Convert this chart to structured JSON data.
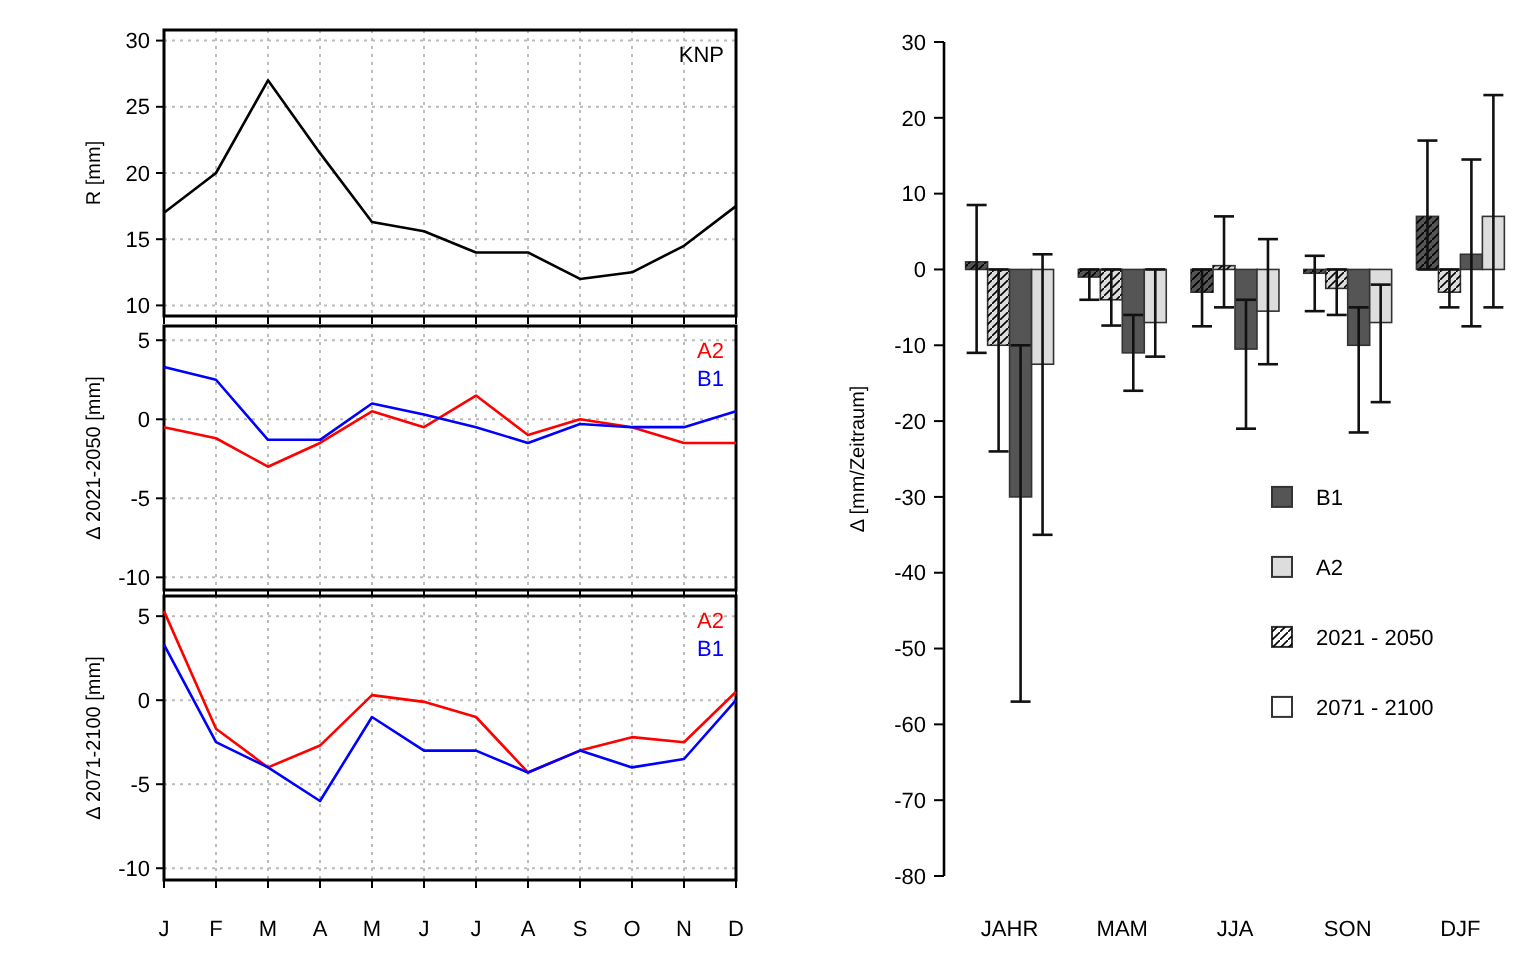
{
  "chart_data": [
    {
      "type": "line",
      "ylabel": "R [mm]",
      "ylim": [
        9.2,
        30.8
      ],
      "yticks": [
        10,
        15,
        20,
        25,
        30
      ],
      "grid": true,
      "tick_labels": "y",
      "annotations": [
        "KNP"
      ],
      "series": [
        {
          "color": "#000000",
          "values": [
            17,
            20,
            27,
            21.5,
            16.3,
            15.6,
            14,
            14,
            12,
            12.5,
            14.5,
            17.5
          ]
        }
      ]
    },
    {
      "type": "line",
      "ylabel": "Δ 2021-2050 [mm]",
      "ylim": [
        -10.8,
        5.9
      ],
      "yticks": [
        -10,
        -5,
        0,
        5
      ],
      "grid": true,
      "tick_labels": "y",
      "legend": "top right",
      "series": [
        {
          "name": "A2",
          "color": "#ff0000",
          "values": [
            -0.5,
            -1.2,
            -3,
            -1.5,
            0.5,
            -0.5,
            1.5,
            -1,
            0,
            -0.5,
            -1.5,
            -1.5
          ]
        },
        {
          "name": "B1",
          "color": "#0000ff",
          "values": [
            3.3,
            2.5,
            -1.3,
            -1.3,
            1,
            0.3,
            -0.5,
            -1.5,
            -0.3,
            -0.5,
            -0.5,
            0.5
          ]
        }
      ]
    },
    {
      "type": "line",
      "ylabel": "Δ 2071-2100 [mm]",
      "categories": [
        "J",
        "F",
        "M",
        "A",
        "M",
        "J",
        "J",
        "A",
        "S",
        "O",
        "N",
        "D"
      ],
      "ylim": [
        -10.7,
        6.2
      ],
      "yticks": [
        -10,
        -5,
        0,
        5
      ],
      "grid": true,
      "legend": "top right",
      "series": [
        {
          "name": "A2",
          "color": "#ff0000",
          "values": [
            5.3,
            -1.7,
            -4,
            -2.7,
            0.3,
            -0.1,
            -1,
            -4.3,
            -3,
            -2.2,
            -2.5,
            0.5
          ]
        },
        {
          "name": "B1",
          "color": "#0000ff",
          "values": [
            3.3,
            -2.5,
            -4,
            -6,
            -1,
            -3,
            -3,
            -4.3,
            -3,
            -4,
            -3.5,
            0
          ]
        }
      ]
    },
    {
      "type": "bar",
      "ylabel": "Δ [mm/Zeitraum]",
      "categories": [
        "JAHR",
        "MAM",
        "JJA",
        "SON",
        "DJF"
      ],
      "ylim": [
        -80,
        30
      ],
      "yticks": [
        -80,
        -70,
        -60,
        -50,
        -40,
        -30,
        -20,
        -10,
        0,
        10,
        20,
        30
      ],
      "annotations": [
        "B1",
        "A2",
        "2021 - 2050",
        "2071 - 2100"
      ],
      "series": [
        {
          "color": "#555555",
          "values": [
            1,
            -1,
            -3,
            -0.5,
            7
          ],
          "errors": [
            [
              -11,
              8.5
            ],
            [
              -4,
              0
            ],
            [
              -7.5,
              0
            ],
            [
              -5.5,
              1.8
            ],
            [
              0,
              17
            ]
          ]
        },
        {
          "color": "#dddddd",
          "values": [
            -10,
            -4,
            0.5,
            -2.5,
            -3
          ],
          "errors": [
            [
              -24,
              0
            ],
            [
              -7.4,
              0
            ],
            [
              -5,
              7
            ],
            [
              -6,
              0
            ],
            [
              -5,
              0
            ]
          ]
        },
        {
          "color": "#555555",
          "values": [
            -30,
            -11,
            -10.5,
            -10,
            2
          ],
          "errors": [
            [
              -57,
              -10
            ],
            [
              -16,
              -6
            ],
            [
              -21,
              -4
            ],
            [
              -21.5,
              -5
            ],
            [
              -7.5,
              14.5
            ]
          ]
        },
        {
          "color": "#dddddd",
          "values": [
            -12.5,
            -7,
            -5.5,
            -7,
            7
          ],
          "errors": [
            [
              -35,
              2
            ],
            [
              -11.5,
              0
            ],
            [
              -12.5,
              4
            ],
            [
              -17.5,
              -2
            ],
            [
              -5,
              23
            ]
          ]
        }
      ]
    }
  ]
}
